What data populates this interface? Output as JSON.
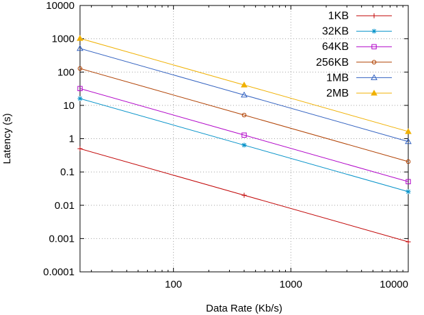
{
  "chart_data": {
    "type": "line",
    "title": "",
    "xlabel": "Data Rate (Kb/s)",
    "ylabel": "Latency (s)",
    "xscale": "log",
    "yscale": "log",
    "xlim": [
      16,
      10000
    ],
    "ylim": [
      0.0001,
      10000
    ],
    "x_ticks": [
      {
        "value": 100,
        "label": "100"
      },
      {
        "value": 1000,
        "label": "1000"
      },
      {
        "value": 10000,
        "label": "10000"
      }
    ],
    "y_ticks": [
      {
        "value": 0.0001,
        "label": "0.0001"
      },
      {
        "value": 0.001,
        "label": "0.001"
      },
      {
        "value": 0.01,
        "label": "0.01"
      },
      {
        "value": 0.1,
        "label": "0.1"
      },
      {
        "value": 1,
        "label": "1"
      },
      {
        "value": 10,
        "label": "10"
      },
      {
        "value": 100,
        "label": "100"
      },
      {
        "value": 1000,
        "label": "1000"
      },
      {
        "value": 10000,
        "label": "10000"
      }
    ],
    "grid": true,
    "legend_position": "top-right",
    "series": [
      {
        "name": "1KB",
        "color": "#c00000",
        "marker": "plus",
        "x": [
          16,
          400,
          10000
        ],
        "y": [
          0.5,
          0.02,
          0.0008
        ]
      },
      {
        "name": "32KB",
        "color": "#0090c8",
        "marker": "star",
        "x": [
          16,
          400,
          10000
        ],
        "y": [
          16,
          0.64,
          0.0256
        ]
      },
      {
        "name": "64KB",
        "color": "#b000c8",
        "marker": "square",
        "x": [
          16,
          400,
          10000
        ],
        "y": [
          32,
          1.28,
          0.0512
        ]
      },
      {
        "name": "256KB",
        "color": "#b04000",
        "marker": "circle",
        "x": [
          16,
          400,
          10000
        ],
        "y": [
          128,
          5.12,
          0.2048
        ]
      },
      {
        "name": "1MB",
        "color": "#3060c0",
        "marker": "triangle",
        "x": [
          16,
          400,
          10000
        ],
        "y": [
          512,
          20.48,
          0.8192
        ]
      },
      {
        "name": "2MB",
        "color": "#f0b000",
        "marker": "triangle-filled",
        "x": [
          16,
          400,
          10000
        ],
        "y": [
          1024,
          40.96,
          1.6384
        ]
      }
    ]
  }
}
